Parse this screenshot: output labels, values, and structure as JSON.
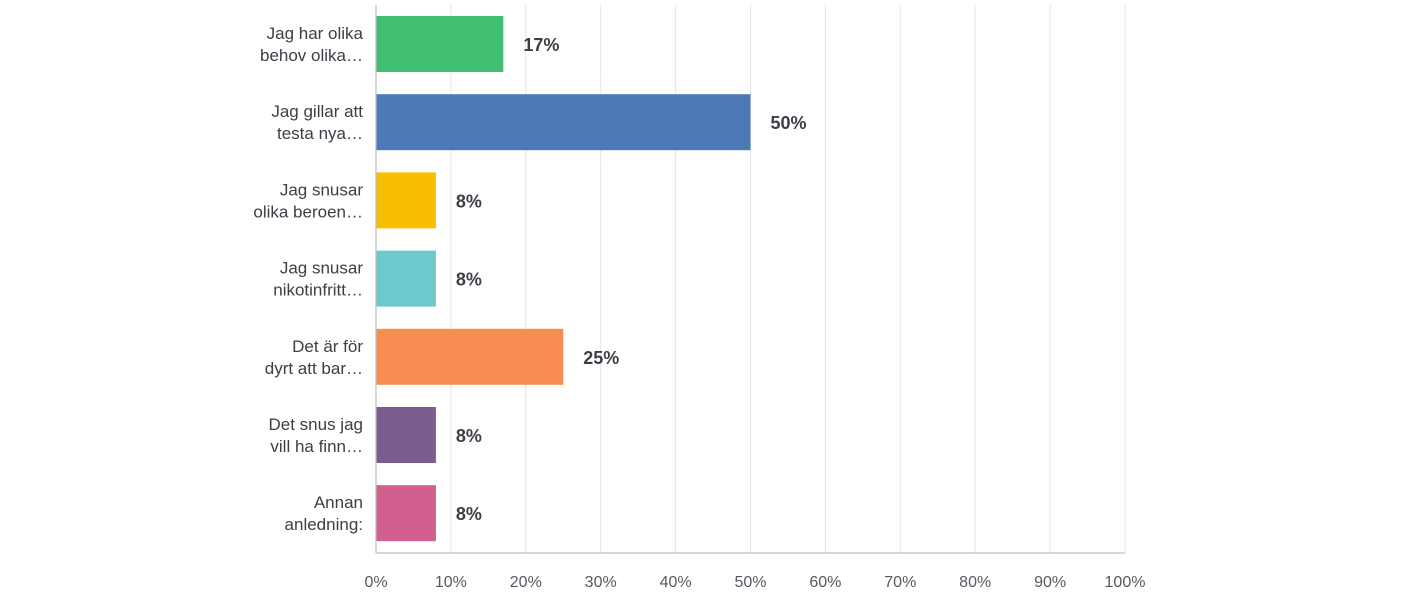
{
  "chart_data": {
    "type": "bar",
    "orientation": "horizontal",
    "categories": [
      [
        "Jag har olika",
        "behov olika…"
      ],
      [
        "Jag gillar att",
        "testa nya…"
      ],
      [
        "Jag snusar",
        "olika beroen…"
      ],
      [
        "Jag snusar",
        "nikotinfritt…"
      ],
      [
        "Det är för",
        "dyrt att bar…"
      ],
      [
        "Det snus jag",
        "vill ha finn…"
      ],
      [
        "Annan",
        "anledning:"
      ]
    ],
    "values": [
      17,
      50,
      8,
      8,
      25,
      8,
      8
    ],
    "value_labels": [
      "17%",
      "50%",
      "8%",
      "8%",
      "25%",
      "8%",
      "8%"
    ],
    "colors": [
      "#3fbf6f",
      "#4d7ab6",
      "#f7bf00",
      "#6cc9cc",
      "#f78d50",
      "#7c5b8e",
      "#d2608e"
    ],
    "xlim": [
      0,
      100
    ],
    "x_ticks": [
      "0%",
      "10%",
      "20%",
      "30%",
      "40%",
      "50%",
      "60%",
      "70%",
      "80%",
      "90%",
      "100%"
    ],
    "grid": true,
    "legend": "none"
  }
}
